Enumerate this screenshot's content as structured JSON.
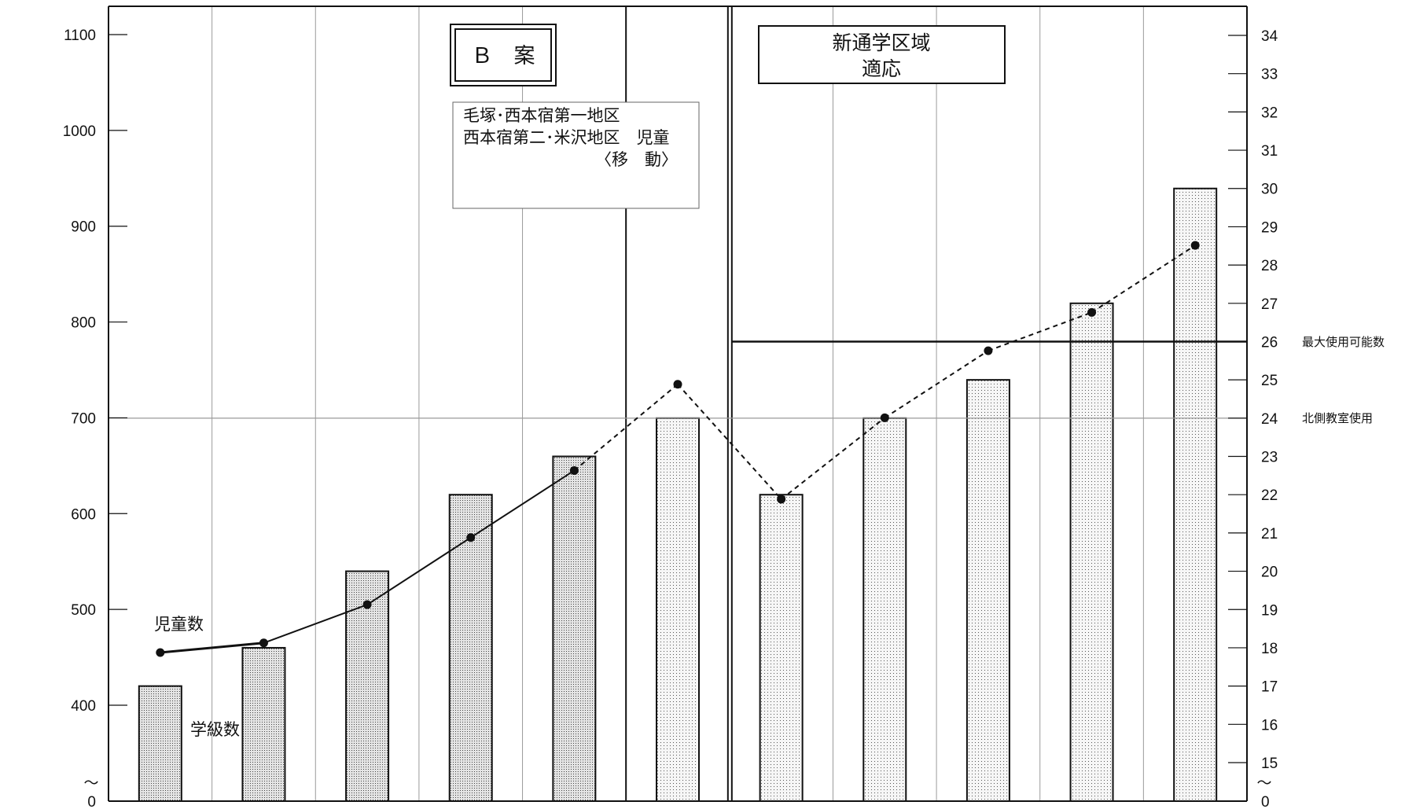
{
  "chart_data": {
    "type": "bar",
    "title": "",
    "categories": [
      "",
      "",
      "",
      "",
      "",
      "",
      "",
      "",
      "",
      "",
      ""
    ],
    "series": [
      {
        "name": "学級数",
        "axis": "right",
        "values": [
          17,
          18,
          20,
          22,
          23,
          24,
          22,
          24,
          25,
          27,
          30
        ],
        "bar_style": [
          "dense",
          "dense",
          "dense",
          "dense",
          "dense",
          "light",
          "light",
          "light",
          "light",
          "light",
          "light"
        ]
      },
      {
        "name": "児童数",
        "axis": "left",
        "type": "line",
        "values": [
          455,
          465,
          505,
          575,
          645,
          735,
          615,
          700,
          770,
          810,
          880
        ],
        "line_style": [
          "solid",
          "solid",
          "solid",
          "solid",
          "dashed",
          "dashed",
          "dashed",
          "dashed",
          "dashed",
          "dashed"
        ]
      }
    ],
    "left_axis": {
      "ylim": [
        0,
        1100
      ],
      "ticks": [
        "0",
        "400",
        "500",
        "600",
        "700",
        "800",
        "900",
        "1000",
        "1100"
      ],
      "break": "〜"
    },
    "right_axis": {
      "ylim": [
        0,
        34
      ],
      "ticks": [
        "0",
        "15",
        "16",
        "17",
        "18",
        "19",
        "20",
        "21",
        "22",
        "23",
        "24",
        "25",
        "26",
        "27",
        "28",
        "29",
        "30",
        "31",
        "32",
        "33",
        "34"
      ],
      "break": "〜"
    },
    "reference_lines": [
      {
        "value": 26,
        "axis": "right",
        "label": "最大使用可能数",
        "scope": "right-section"
      },
      {
        "value": 24,
        "axis": "right",
        "label": "北側教室使用",
        "scope": "full"
      }
    ],
    "grid": true
  },
  "annotations": {
    "plan_box": "Ｂ　案",
    "new_district_box": [
      "新通学区域",
      "適応"
    ],
    "move_note": [
      "毛塚･西本宿第一地区",
      "西本宿第二･米沢地区　児童",
      "〈移　動〉"
    ],
    "children_label": "児童数",
    "classes_label": "学級数"
  },
  "colors": {
    "ink": "#111111",
    "grid": "#9a9a9a",
    "dense_fill": "#d2d2d2",
    "light_fill": "#eeeeee"
  }
}
